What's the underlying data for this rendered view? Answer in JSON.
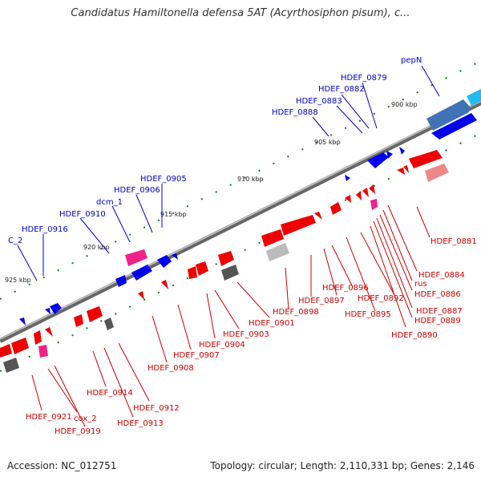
{
  "title": "Candidatus Hamiltonella defensa 5AT (Acyrthosiphon pisum), c...",
  "footer": {
    "accession": "Accession: NC_012751",
    "summary": "Topology: circular; Length: 2,110,331 bp; Genes: 2,146"
  },
  "scale_labels": [
    "900 kbp",
    "905 kbp",
    "910 kbp",
    "915 kbp",
    "920 kbp",
    "925 kbp"
  ],
  "upper_labels": [
    "pepN",
    "HDEF_0879",
    "HDEF_0882",
    "HDEF_0883",
    "HDEF_0888",
    "HDEF_0905",
    "HDEF_0906",
    "dcm_1",
    "HDEF_0910",
    "HDEF_0916",
    "C_2"
  ],
  "lower_labels": [
    "HDEF_0881",
    "HDEF_0884",
    "rus",
    "HDEF_0886",
    "HDEF_0887",
    "HDEF_0889",
    "HDEF_0890",
    "HDEF_0892",
    "HDEF_0895",
    "HDEF_0896",
    "HDEF_0897",
    "HDEF_0898",
    "HDEF_0901",
    "HDEF_0903",
    "HDEF_0904",
    "HDEF_0907",
    "HDEF_0908",
    "HDEF_0912",
    "HDEF_0913",
    "HDEF_0914",
    "HDEF_0919",
    "cox_2",
    "HDEF_0921"
  ],
  "colors": {
    "forward": "#0000ee",
    "reverse": "#ee0000",
    "rna": "#ee2288",
    "pseudo": "#555555",
    "backbone": "#888888"
  }
}
